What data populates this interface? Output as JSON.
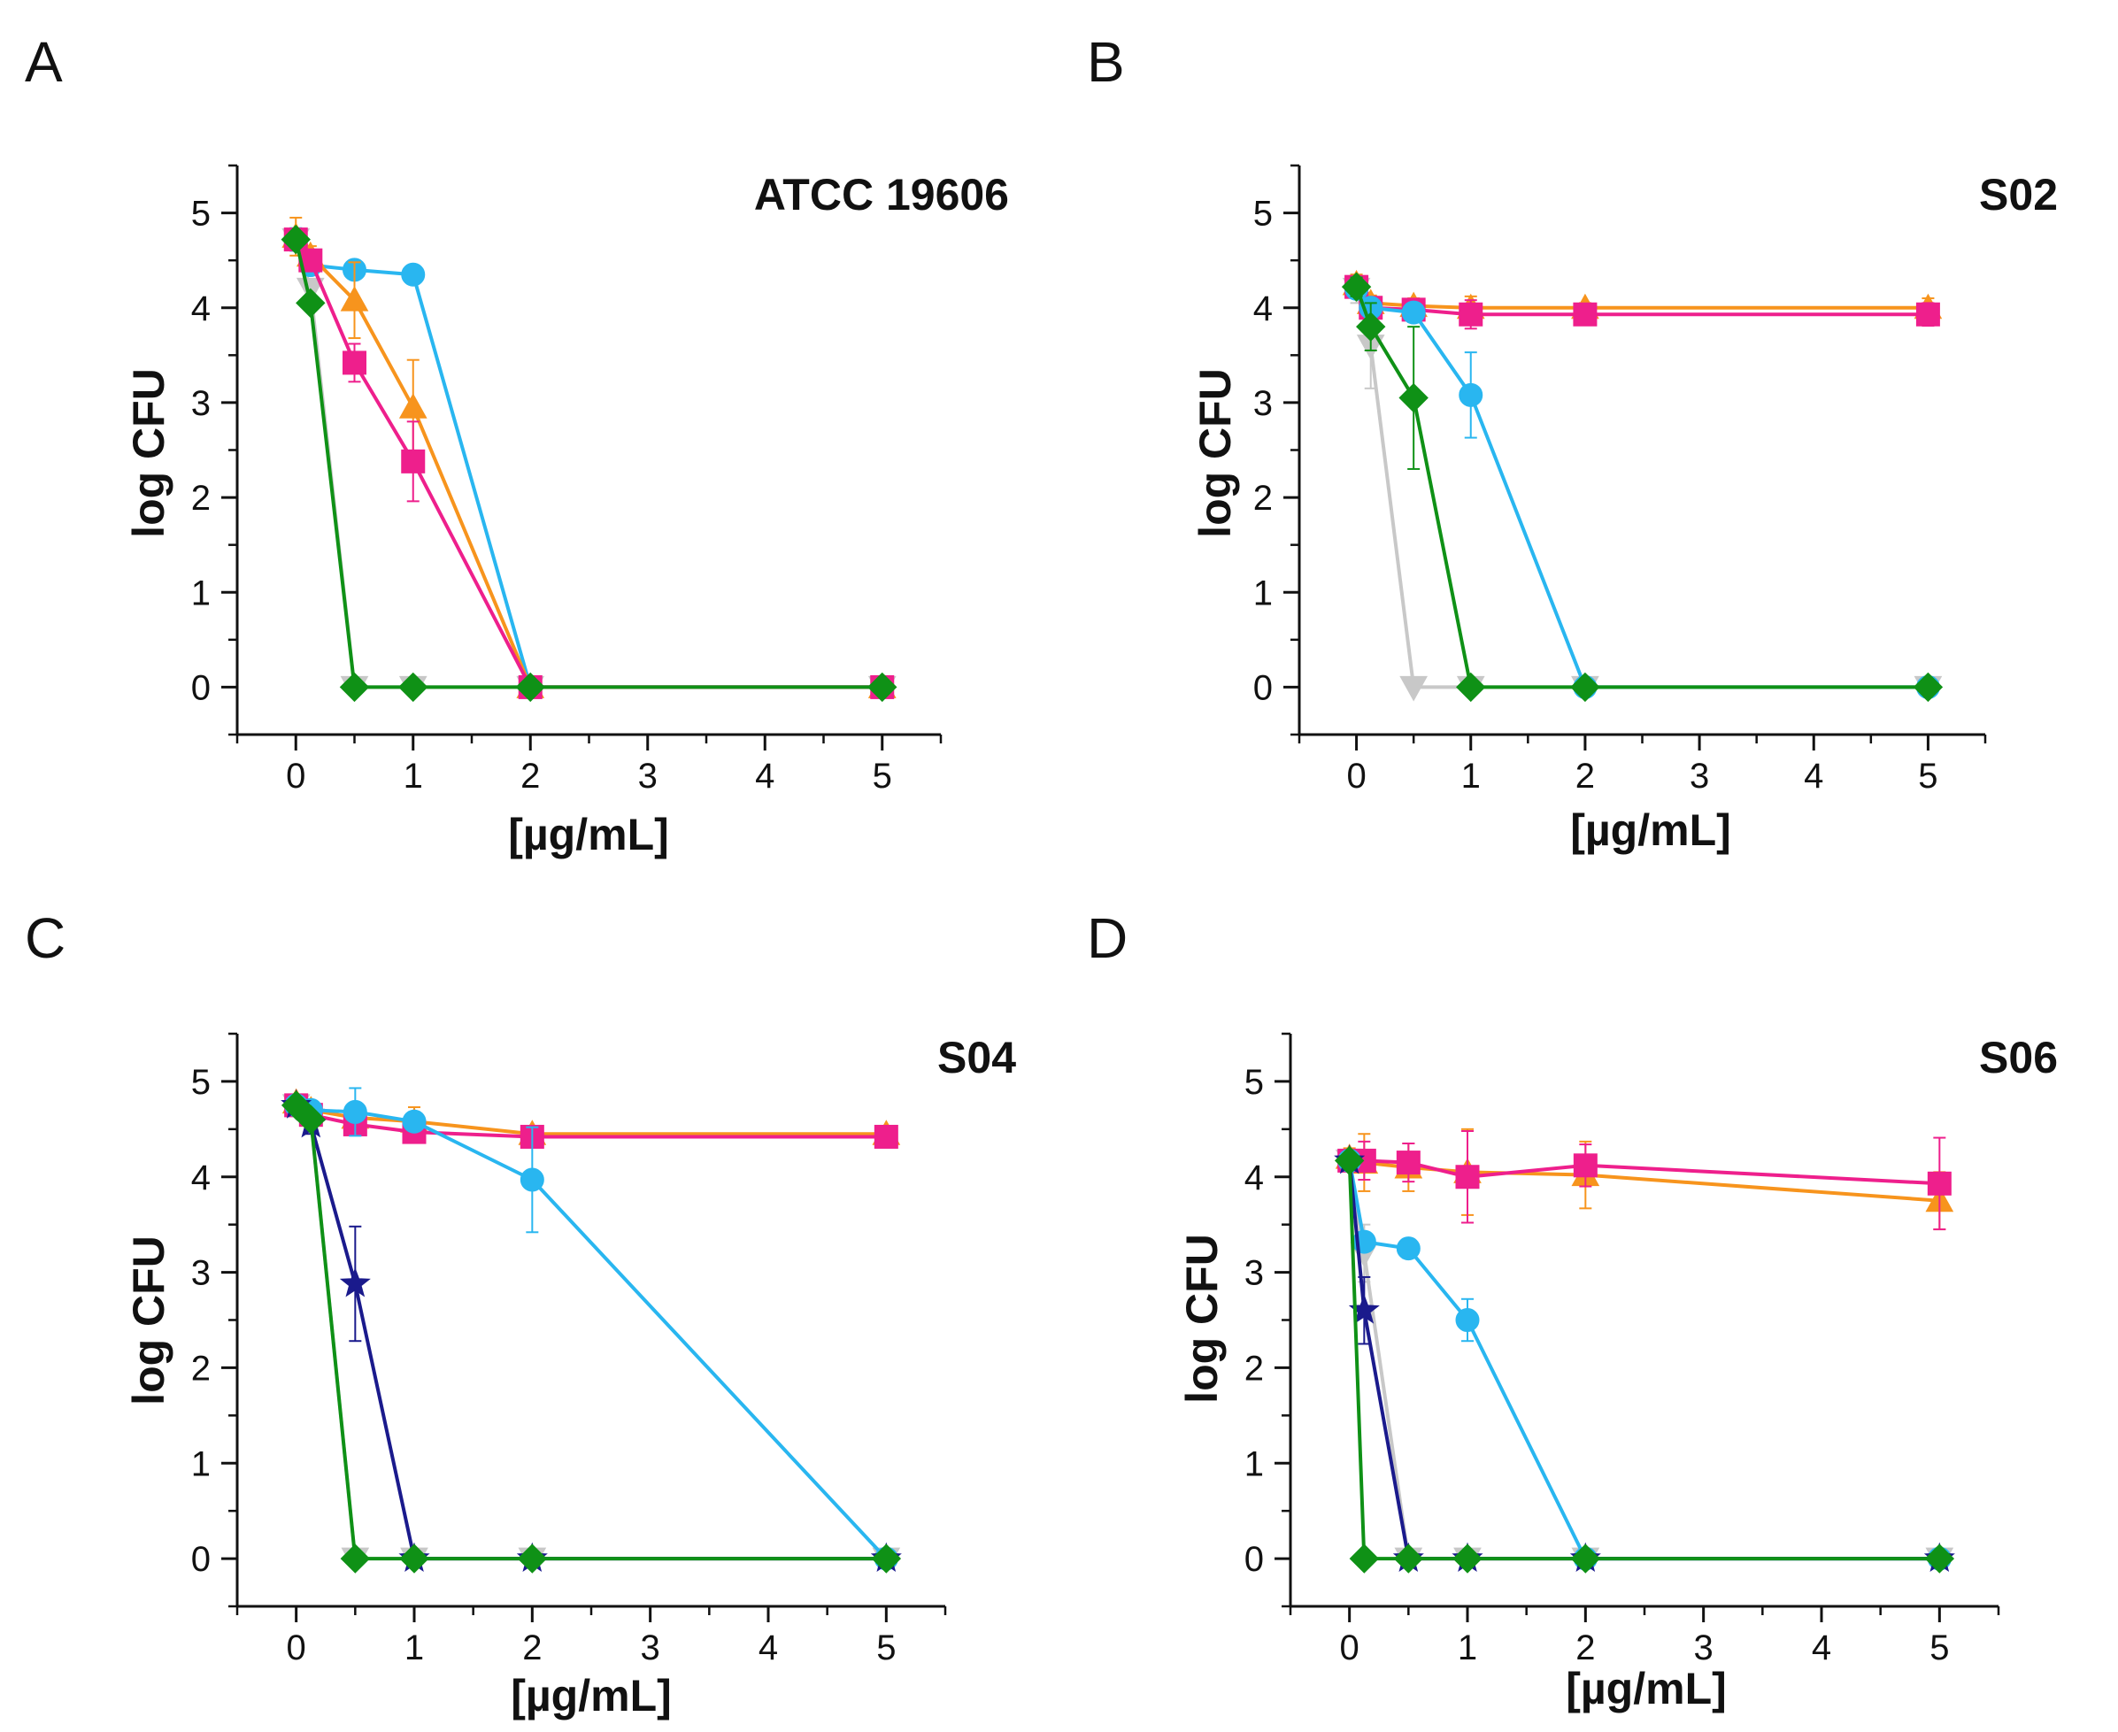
{
  "chart_data": [
    {
      "panel": "A",
      "type": "line",
      "title": "ATCC 19606",
      "xlabel": "[µg/mL]",
      "ylabel": "log CFU",
      "xlim": [
        -0.5,
        5.5
      ],
      "ylim": [
        -0.5,
        5.5
      ],
      "xticks": [
        "0",
        "1",
        "2",
        "3",
        "4",
        "5"
      ],
      "yticks": [
        "0",
        "1",
        "2",
        "3",
        "4",
        "5"
      ],
      "series": [
        {
          "name": "gray",
          "color": "#c8c8c8",
          "marker": "triangle-down",
          "x": [
            0,
            0.125,
            0.5,
            1,
            2,
            5
          ],
          "y": [
            4.72,
            4.2,
            0,
            0,
            0,
            0
          ]
        },
        {
          "name": "cyan",
          "color": "#29b6f0",
          "marker": "circle",
          "x": [
            0,
            0.125,
            0.5,
            1,
            2,
            5
          ],
          "y": [
            4.72,
            4.45,
            4.4,
            4.35,
            0,
            0
          ],
          "err": [
            0.12,
            0.08,
            0.07,
            0.08,
            0,
            0
          ]
        },
        {
          "name": "orange",
          "color": "#f7941d",
          "marker": "triangle-up",
          "x": [
            0,
            0.125,
            0.5,
            1,
            2,
            5
          ],
          "y": [
            4.75,
            4.55,
            4.08,
            2.95,
            0,
            0
          ],
          "err": [
            0.2,
            0.1,
            0.4,
            0.5,
            0,
            0
          ]
        },
        {
          "name": "magenta",
          "color": "#ee1f8c",
          "marker": "square",
          "x": [
            0,
            0.125,
            0.5,
            1,
            2,
            5
          ],
          "y": [
            4.72,
            4.5,
            3.42,
            2.38,
            0,
            0
          ],
          "err": [
            0.1,
            0.1,
            0.2,
            0.42,
            0,
            0
          ]
        },
        {
          "name": "green",
          "color": "#0f9116",
          "marker": "diamond",
          "x": [
            0,
            0.125,
            0.5,
            1,
            2,
            5
          ],
          "y": [
            4.72,
            4.05,
            0,
            0,
            0,
            0
          ]
        }
      ]
    },
    {
      "panel": "B",
      "type": "line",
      "title": "S02",
      "xlabel": "[µg/mL]",
      "ylabel": "log CFU",
      "xlim": [
        -0.5,
        5.5
      ],
      "ylim": [
        -0.5,
        5.5
      ],
      "xticks": [
        "0",
        "1",
        "2",
        "3",
        "4",
        "5"
      ],
      "yticks": [
        "0",
        "1",
        "2",
        "3",
        "4",
        "5"
      ],
      "series": [
        {
          "name": "gray",
          "color": "#c8c8c8",
          "marker": "triangle-down",
          "x": [
            0,
            0.125,
            0.5,
            1,
            2,
            5
          ],
          "y": [
            4.2,
            3.6,
            0,
            0,
            0,
            0
          ],
          "err": [
            0.15,
            0.45,
            0,
            0,
            0,
            0
          ]
        },
        {
          "name": "orange",
          "color": "#f7941d",
          "marker": "triangle-up",
          "x": [
            0,
            0.125,
            0.5,
            1,
            2,
            5
          ],
          "y": [
            4.25,
            4.05,
            4.02,
            4.0,
            4.0,
            4.0
          ],
          "err": [
            0.1,
            0.08,
            0.08,
            0.12,
            0.05,
            0.1
          ]
        },
        {
          "name": "magenta",
          "color": "#ee1f8c",
          "marker": "square",
          "x": [
            0,
            0.125,
            0.5,
            1,
            2,
            5
          ],
          "y": [
            4.22,
            4.0,
            3.98,
            3.93,
            3.93,
            3.93
          ],
          "err": [
            0.08,
            0.08,
            0.08,
            0.15,
            0.05,
            0.12
          ]
        },
        {
          "name": "cyan",
          "color": "#29b6f0",
          "marker": "circle",
          "x": [
            0,
            0.125,
            0.5,
            1,
            2,
            5
          ],
          "y": [
            4.2,
            4.0,
            3.95,
            3.08,
            0,
            0
          ],
          "err": [
            0.1,
            0.1,
            0.1,
            0.45,
            0,
            0
          ]
        },
        {
          "name": "green",
          "color": "#0f9116",
          "marker": "diamond",
          "x": [
            0,
            0.125,
            0.5,
            1,
            2,
            5
          ],
          "y": [
            4.22,
            3.8,
            3.05,
            0,
            0,
            0
          ],
          "err": [
            0.1,
            0.25,
            0.75,
            0,
            0,
            0
          ]
        }
      ]
    },
    {
      "panel": "C",
      "type": "line",
      "title": "S04",
      "xlabel": "[µg/mL]",
      "ylabel": "log CFU",
      "xlim": [
        -0.5,
        5.5
      ],
      "ylim": [
        -0.5,
        5.5
      ],
      "xticks": [
        "0",
        "1",
        "2",
        "3",
        "4",
        "5"
      ],
      "yticks": [
        "0",
        "1",
        "2",
        "3",
        "4",
        "5"
      ],
      "series": [
        {
          "name": "gray",
          "color": "#c8c8c8",
          "marker": "triangle-down",
          "x": [
            0,
            0.125,
            0.5,
            1,
            2,
            5
          ],
          "y": [
            4.75,
            4.6,
            0,
            0,
            0,
            0
          ]
        },
        {
          "name": "orange",
          "color": "#f7941d",
          "marker": "triangle-up",
          "x": [
            0,
            0.125,
            0.5,
            1,
            2,
            5
          ],
          "y": [
            4.78,
            4.7,
            4.62,
            4.58,
            4.45,
            4.45
          ],
          "err": [
            0.08,
            0.08,
            0.15,
            0.15,
            0.05,
            0.05
          ]
        },
        {
          "name": "magenta",
          "color": "#ee1f8c",
          "marker": "square",
          "x": [
            0,
            0.125,
            0.5,
            1,
            2,
            5
          ],
          "y": [
            4.75,
            4.65,
            4.55,
            4.47,
            4.42,
            4.42
          ],
          "err": [
            0.08,
            0.08,
            0.1,
            0.1,
            0.05,
            0.05
          ]
        },
        {
          "name": "cyan",
          "color": "#29b6f0",
          "marker": "circle",
          "x": [
            0,
            0.125,
            0.5,
            1,
            2,
            5
          ],
          "y": [
            4.75,
            4.7,
            4.68,
            4.58,
            3.97,
            0
          ],
          "err": [
            0.08,
            0.08,
            0.25,
            0.1,
            0.55,
            0
          ]
        },
        {
          "name": "navy",
          "color": "#1a1a8c",
          "marker": "star",
          "x": [
            0,
            0.125,
            0.5,
            1,
            2,
            5
          ],
          "y": [
            4.75,
            4.55,
            2.88,
            0,
            0,
            0
          ],
          "err": [
            0.08,
            0.1,
            0.6,
            0,
            0,
            0
          ]
        },
        {
          "name": "green",
          "color": "#0f9116",
          "marker": "diamond",
          "x": [
            0,
            0.125,
            0.5,
            1,
            2,
            5
          ],
          "y": [
            4.75,
            4.6,
            0,
            0,
            0,
            0
          ]
        }
      ]
    },
    {
      "panel": "D",
      "type": "line",
      "title": "S06",
      "xlabel": "[µg/mL]",
      "ylabel": "log CFU",
      "xlim": [
        -0.5,
        5.5
      ],
      "ylim": [
        -0.5,
        5.5
      ],
      "xticks": [
        "0",
        "1",
        "2",
        "3",
        "4",
        "5"
      ],
      "yticks": [
        "0",
        "1",
        "2",
        "3",
        "4",
        "5"
      ],
      "series": [
        {
          "name": "gray",
          "color": "#c8c8c8",
          "marker": "triangle-down",
          "x": [
            0,
            0.125,
            0.5,
            1,
            2,
            5
          ],
          "y": [
            4.17,
            3.2,
            0,
            0,
            0,
            0
          ],
          "err": [
            0.08,
            0.3,
            0,
            0,
            0,
            0
          ]
        },
        {
          "name": "orange",
          "color": "#f7941d",
          "marker": "triangle-up",
          "x": [
            0,
            0.125,
            0.5,
            1,
            2,
            5
          ],
          "y": [
            4.2,
            4.15,
            4.1,
            4.05,
            4.02,
            3.75
          ],
          "err": [
            0.1,
            0.3,
            0.25,
            0.45,
            0.35,
            0.3
          ]
        },
        {
          "name": "magenta",
          "color": "#ee1f8c",
          "marker": "square",
          "x": [
            0,
            0.125,
            0.5,
            1,
            2,
            5
          ],
          "y": [
            4.17,
            4.17,
            4.15,
            4.0,
            4.12,
            3.93
          ],
          "err": [
            0.1,
            0.2,
            0.2,
            0.48,
            0.22,
            0.48
          ]
        },
        {
          "name": "cyan",
          "color": "#29b6f0",
          "marker": "circle",
          "x": [
            0,
            0.125,
            0.5,
            1,
            2,
            5
          ],
          "y": [
            4.17,
            3.32,
            3.25,
            2.5,
            0,
            0
          ],
          "err": [
            0.08,
            0.1,
            0.1,
            0.22,
            0,
            0
          ]
        },
        {
          "name": "navy",
          "color": "#1a1a8c",
          "marker": "star",
          "x": [
            0,
            0.125,
            0.5,
            1,
            2,
            5
          ],
          "y": [
            4.17,
            2.6,
            0,
            0,
            0,
            0
          ],
          "err": [
            0.08,
            0.35,
            0,
            0,
            0,
            0
          ]
        },
        {
          "name": "green",
          "color": "#0f9116",
          "marker": "diamond",
          "x": [
            0,
            0.125,
            0.5,
            1,
            2,
            5
          ],
          "y": [
            4.17,
            0,
            0,
            0,
            0,
            0
          ]
        }
      ]
    }
  ]
}
